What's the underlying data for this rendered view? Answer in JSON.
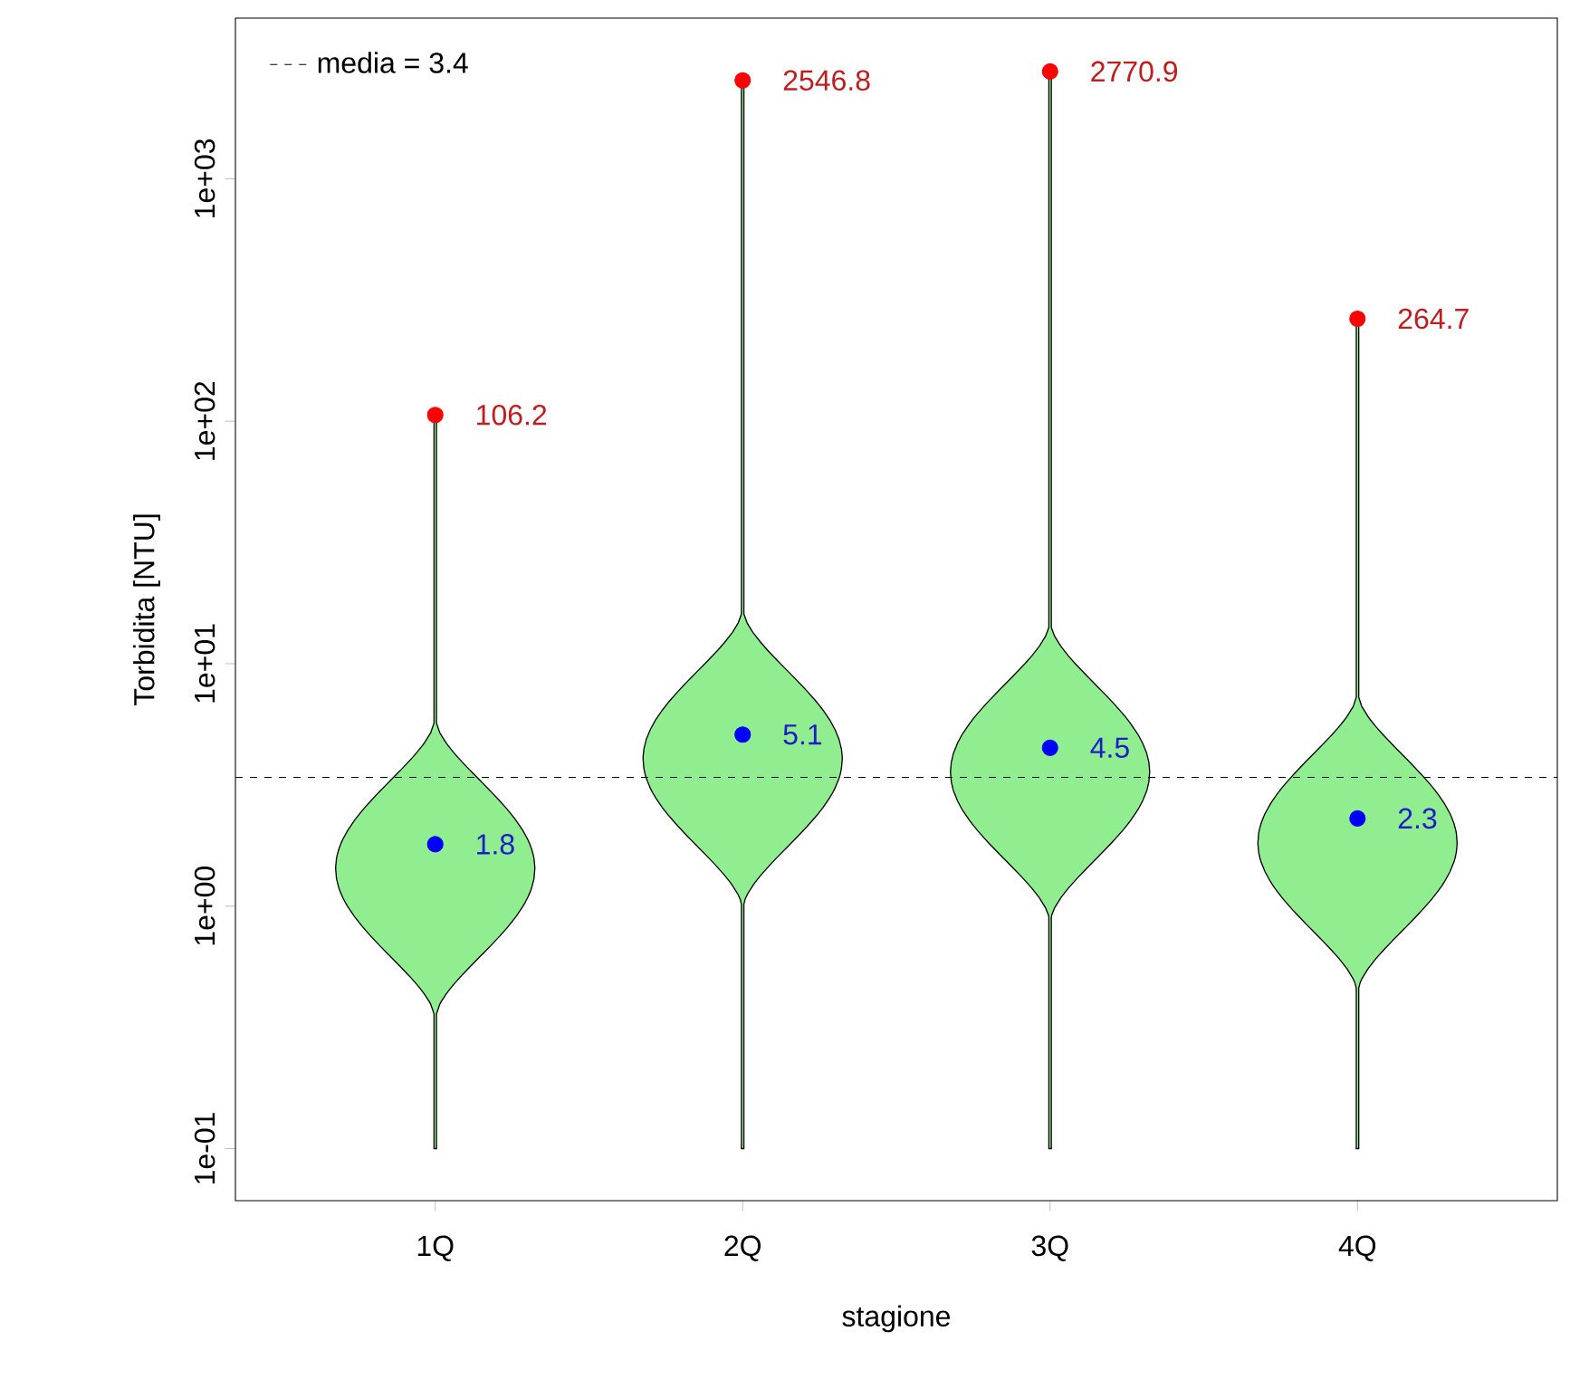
{
  "chart_data": {
    "type": "scatter",
    "xlabel": "stagione",
    "ylabel": "Torbidita [NTU]",
    "categories": [
      "1Q",
      "2Q",
      "3Q",
      "4Q"
    ],
    "series": [
      {
        "color": "#ff0000",
        "values": [
          106.2,
          2546.8,
          2770.9,
          264.7
        ],
        "value_labels": [
          "106.2",
          "2546.8",
          "2770.9",
          "264.7"
        ]
      },
      {
        "color": "#0000ff",
        "values": [
          1.8,
          5.1,
          4.5,
          2.3
        ],
        "value_labels": [
          "1.8",
          "5.1",
          "4.5",
          "2.3"
        ]
      }
    ],
    "ref_lines": [
      {
        "axis": "y",
        "value": 3.4,
        "label": "media = 3.4",
        "line_style": "dashed",
        "color": "#000000"
      }
    ],
    "log": "y",
    "ylim": [
      0.061,
      4600
    ],
    "yticks": [
      {
        "value": 0.1,
        "label": "1e-01"
      },
      {
        "value": 1,
        "label": "1e+00"
      },
      {
        "value": 10,
        "label": "1e+01"
      },
      {
        "value": 100,
        "label": "1e+02"
      },
      {
        "value": 1000,
        "label": "1e+03"
      }
    ],
    "grid": false,
    "legend": "top left",
    "marker": "circle"
  }
}
